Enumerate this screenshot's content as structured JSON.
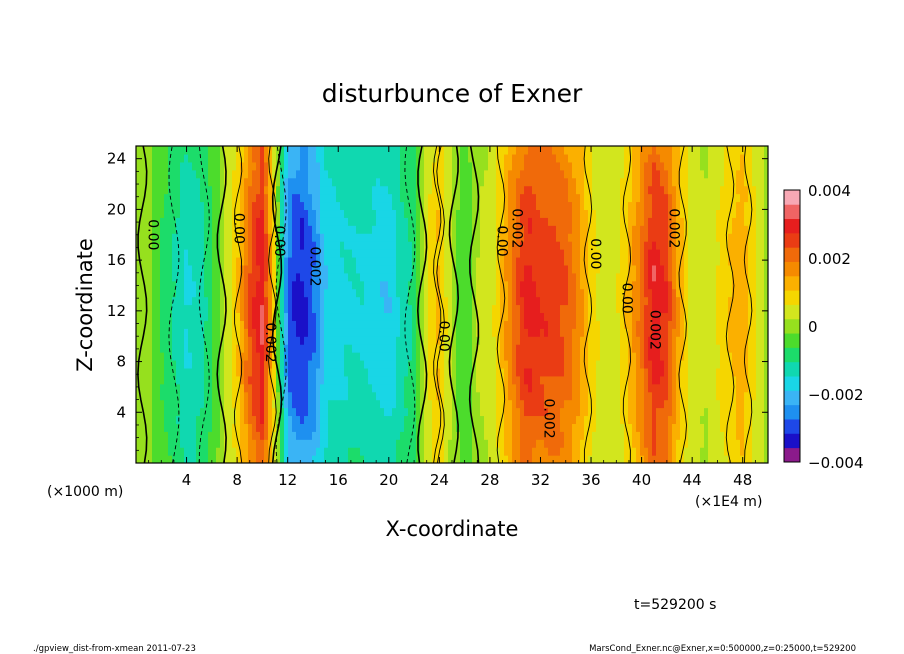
{
  "chart_data": {
    "type": "heatmap",
    "title": "disturbunce of Exner",
    "xlabel": "X-coordinate",
    "ylabel": "Z-coordinate",
    "x_unit_left": "(×1000 m)",
    "x_unit_right": "(×1E4 m)",
    "xlim": [
      0,
      50
    ],
    "ylim": [
      0,
      25
    ],
    "x_ticks": [
      "4",
      "8",
      "12",
      "16",
      "20",
      "24",
      "28",
      "32",
      "36",
      "40",
      "44",
      "48"
    ],
    "y_ticks": [
      "4",
      "8",
      "12",
      "16",
      "20",
      "24"
    ],
    "colorbar": {
      "ticks": [
        "0.004",
        "0.002",
        "0",
        "−0.002",
        "−0.004"
      ],
      "range": [
        -0.004,
        0.004
      ],
      "colors": [
        "#8b1a8b",
        "#1a10c8",
        "#1e48e8",
        "#1e90f0",
        "#3ab4f5",
        "#19d6e6",
        "#10d8b0",
        "#1cdc6a",
        "#4cdc2c",
        "#96e01e",
        "#d2e61e",
        "#f5d600",
        "#fbb000",
        "#f58a00",
        "#f06a0a",
        "#ea3c14",
        "#e61e1e",
        "#f06464",
        "#f8a8b4"
      ]
    },
    "column_profile": {
      "x": [
        0,
        1,
        2,
        3,
        4,
        5,
        6,
        7,
        8,
        9,
        10,
        11,
        12,
        13,
        14,
        15,
        16,
        17,
        18,
        19,
        20,
        21,
        22,
        23,
        24,
        25,
        26,
        27,
        28,
        29,
        30,
        31,
        32,
        33,
        34,
        35,
        36,
        37,
        38,
        39,
        40,
        41,
        42,
        43,
        44,
        45,
        46,
        47,
        48,
        49,
        50
      ],
      "value": [
        0.0001,
        -0.0001,
        -0.0006,
        -0.001,
        -0.0014,
        -0.0012,
        -0.0007,
        0.0002,
        0.0009,
        0.0022,
        0.0029,
        0.0005,
        -0.0026,
        -0.0031,
        -0.0026,
        -0.0017,
        -0.0015,
        -0.0014,
        -0.0014,
        -0.0016,
        -0.0017,
        -0.0012,
        -0.0009,
        0.0005,
        0.0011,
        0.0001,
        -0.0006,
        0.0002,
        0.0003,
        0.0011,
        0.002,
        0.0027,
        0.0024,
        0.0024,
        0.0021,
        0.0016,
        0.0008,
        0.0004,
        0.0005,
        0.0011,
        0.0019,
        0.0028,
        0.0024,
        0.0012,
        0.0004,
        0.0002,
        0.0006,
        0.001,
        0.0013,
        0.0006,
        0.0001
      ]
    },
    "contour_labels": [
      {
        "text": "0.00",
        "x": 1.0,
        "z": 18
      },
      {
        "text": "0.00",
        "x": 7.8,
        "z": 18.5
      },
      {
        "text": "0.00",
        "x": 11.0,
        "z": 17.5
      },
      {
        "text": "0.002",
        "x": 13.8,
        "z": 15.5
      },
      {
        "text": "0.002",
        "x": 10.3,
        "z": 9.5
      },
      {
        "text": "0.00",
        "x": 24.0,
        "z": 10.0
      },
      {
        "text": "0.00",
        "x": 28.6,
        "z": 17.5
      },
      {
        "text": "0.002",
        "x": 29.8,
        "z": 18.5
      },
      {
        "text": "0.00",
        "x": 36.0,
        "z": 16.5
      },
      {
        "text": "0.00",
        "x": 38.5,
        "z": 13.0
      },
      {
        "text": "0.002",
        "x": 40.7,
        "z": 10.5
      },
      {
        "text": "0.002",
        "x": 42.2,
        "z": 18.5
      },
      {
        "text": "0.002",
        "x": 32.3,
        "z": 3.5
      }
    ]
  },
  "annotations": {
    "time": "t=529200 s",
    "footer_left": "./gpview_dist-from-xmean  2011-07-23",
    "footer_right": "MarsCond_Exner.nc@Exner,x=0:500000,z=0:25000,t=529200"
  }
}
